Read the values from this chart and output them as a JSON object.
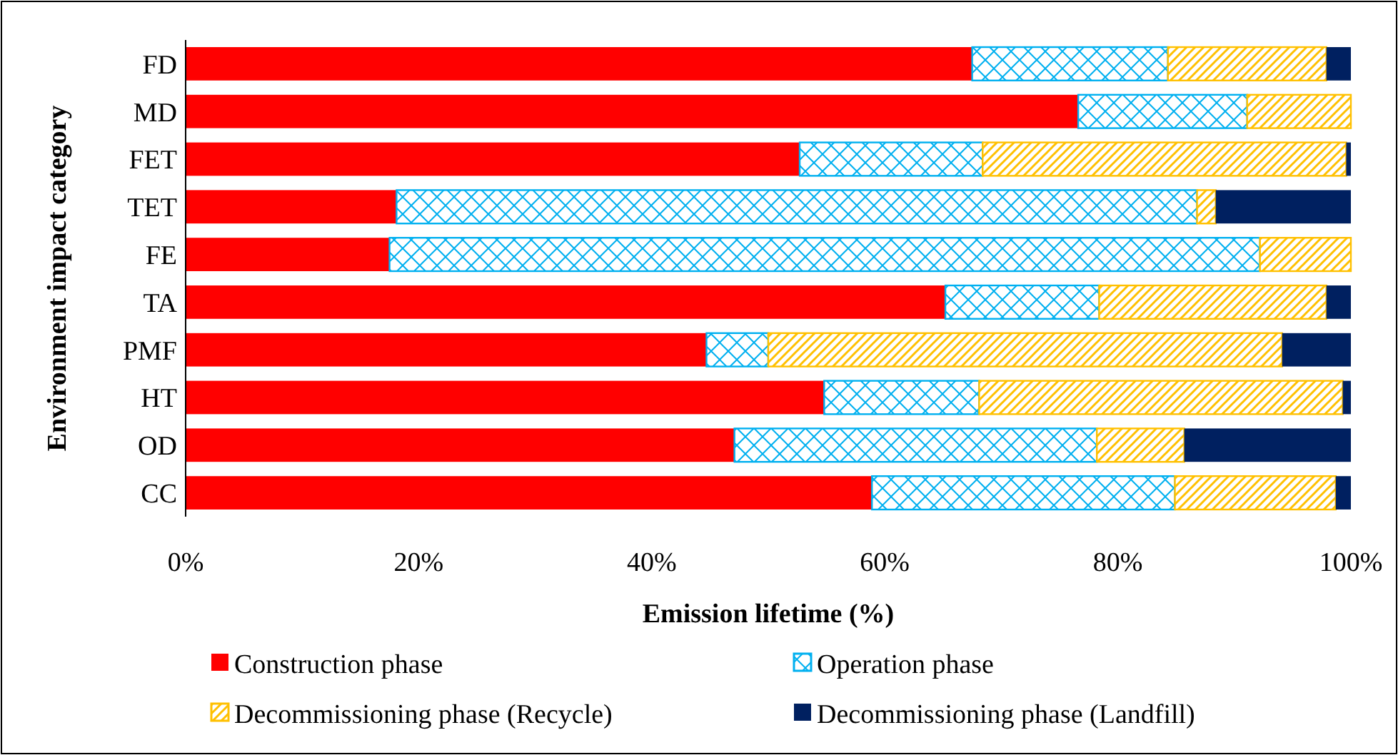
{
  "chart_data": {
    "type": "bar",
    "orientation": "horizontal",
    "stacked": true,
    "xlabel": "Emission lifetime (%)",
    "ylabel": "Environment impact category",
    "categories": [
      "FD",
      "MD",
      "FET",
      "TET",
      "FE",
      "TA",
      "PMF",
      "HT",
      "OD",
      "CC"
    ],
    "series": [
      {
        "name": "Construction phase",
        "color": "#ff0000",
        "values": [
          67.5,
          76.6,
          52.7,
          18.1,
          17.5,
          65.2,
          44.7,
          54.8,
          47.1,
          58.9
        ]
      },
      {
        "name": "Operation phase",
        "color": "#00b0f0",
        "values": [
          16.8,
          14.5,
          15.7,
          68.7,
          74.7,
          13.2,
          5.3,
          13.3,
          31.1,
          26.0
        ]
      },
      {
        "name": "Decommissioning phase (Recycle)",
        "color": "#ffc000",
        "values": [
          13.6,
          8.9,
          31.2,
          1.6,
          7.8,
          19.5,
          44.1,
          31.2,
          7.5,
          13.8
        ]
      },
      {
        "name": "Decommissioning phase (Landfill)",
        "color": "#002060",
        "values": [
          2.1,
          0,
          0.4,
          11.6,
          0,
          2.1,
          5.9,
          0.7,
          14.3,
          1.3
        ]
      }
    ],
    "xlim": [
      0,
      100
    ],
    "xticks": [
      {
        "value": 0,
        "label": "0%"
      },
      {
        "value": 20,
        "label": "20%"
      },
      {
        "value": 40,
        "label": "40%"
      },
      {
        "value": 60,
        "label": "60%"
      },
      {
        "value": 80,
        "label": "80%"
      },
      {
        "value": 100,
        "label": "100%"
      }
    ],
    "grid": false,
    "legend": "bottom"
  }
}
